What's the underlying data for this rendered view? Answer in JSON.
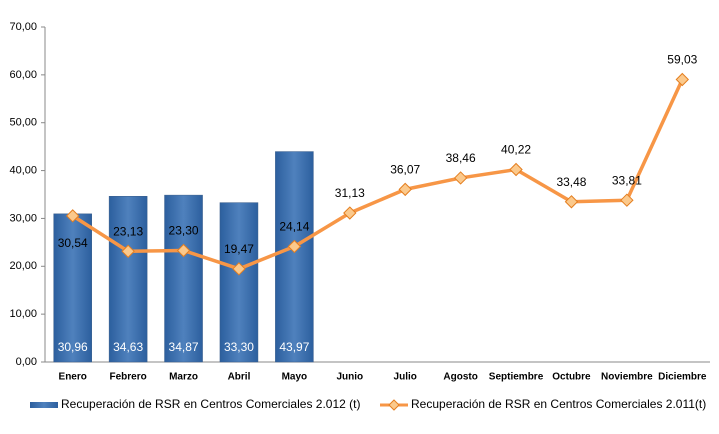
{
  "chart_data": {
    "type": "combo",
    "categories": [
      "Enero",
      "Febrero",
      "Marzo",
      "Abril",
      "Mayo",
      "Junio",
      "Julio",
      "Agosto",
      "Septiembre",
      "Octubre",
      "Noviembre",
      "Diciembre"
    ],
    "series": [
      {
        "name": "Recuperación de RSR en Centros Comerciales 2.012 (t)",
        "type": "bar",
        "color": "#4f81bd",
        "values": [
          30.96,
          34.63,
          34.87,
          33.3,
          43.97,
          null,
          null,
          null,
          null,
          null,
          null,
          null
        ],
        "value_labels": [
          "30,96",
          "34,63",
          "34,87",
          "33,30",
          "43,97",
          null,
          null,
          null,
          null,
          null,
          null,
          null
        ]
      },
      {
        "name": "Recuperación de RSR en Centros Comerciales 2.011(t)",
        "type": "line",
        "color": "#f79646",
        "values": [
          30.54,
          23.13,
          23.3,
          19.47,
          24.14,
          31.13,
          36.07,
          38.46,
          40.22,
          33.48,
          33.81,
          59.03
        ],
        "value_labels": [
          "30,54",
          "23,13",
          "23,30",
          "19,47",
          "24,14",
          "31,13",
          "36,07",
          "38,46",
          "40,22",
          "33,48",
          "33,81",
          "59,03"
        ]
      }
    ],
    "ylim": [
      0,
      70
    ],
    "yticks": [
      {
        "value": 0,
        "label": "0,00"
      },
      {
        "value": 10,
        "label": "10,00"
      },
      {
        "value": 20,
        "label": "20,00"
      },
      {
        "value": 30,
        "label": "30,00"
      },
      {
        "value": 40,
        "label": "40,00"
      },
      {
        "value": 50,
        "label": "50,00"
      },
      {
        "value": 60,
        "label": "60,00"
      },
      {
        "value": 70,
        "label": "70,00"
      }
    ],
    "grid": false,
    "legend": "bottom"
  }
}
